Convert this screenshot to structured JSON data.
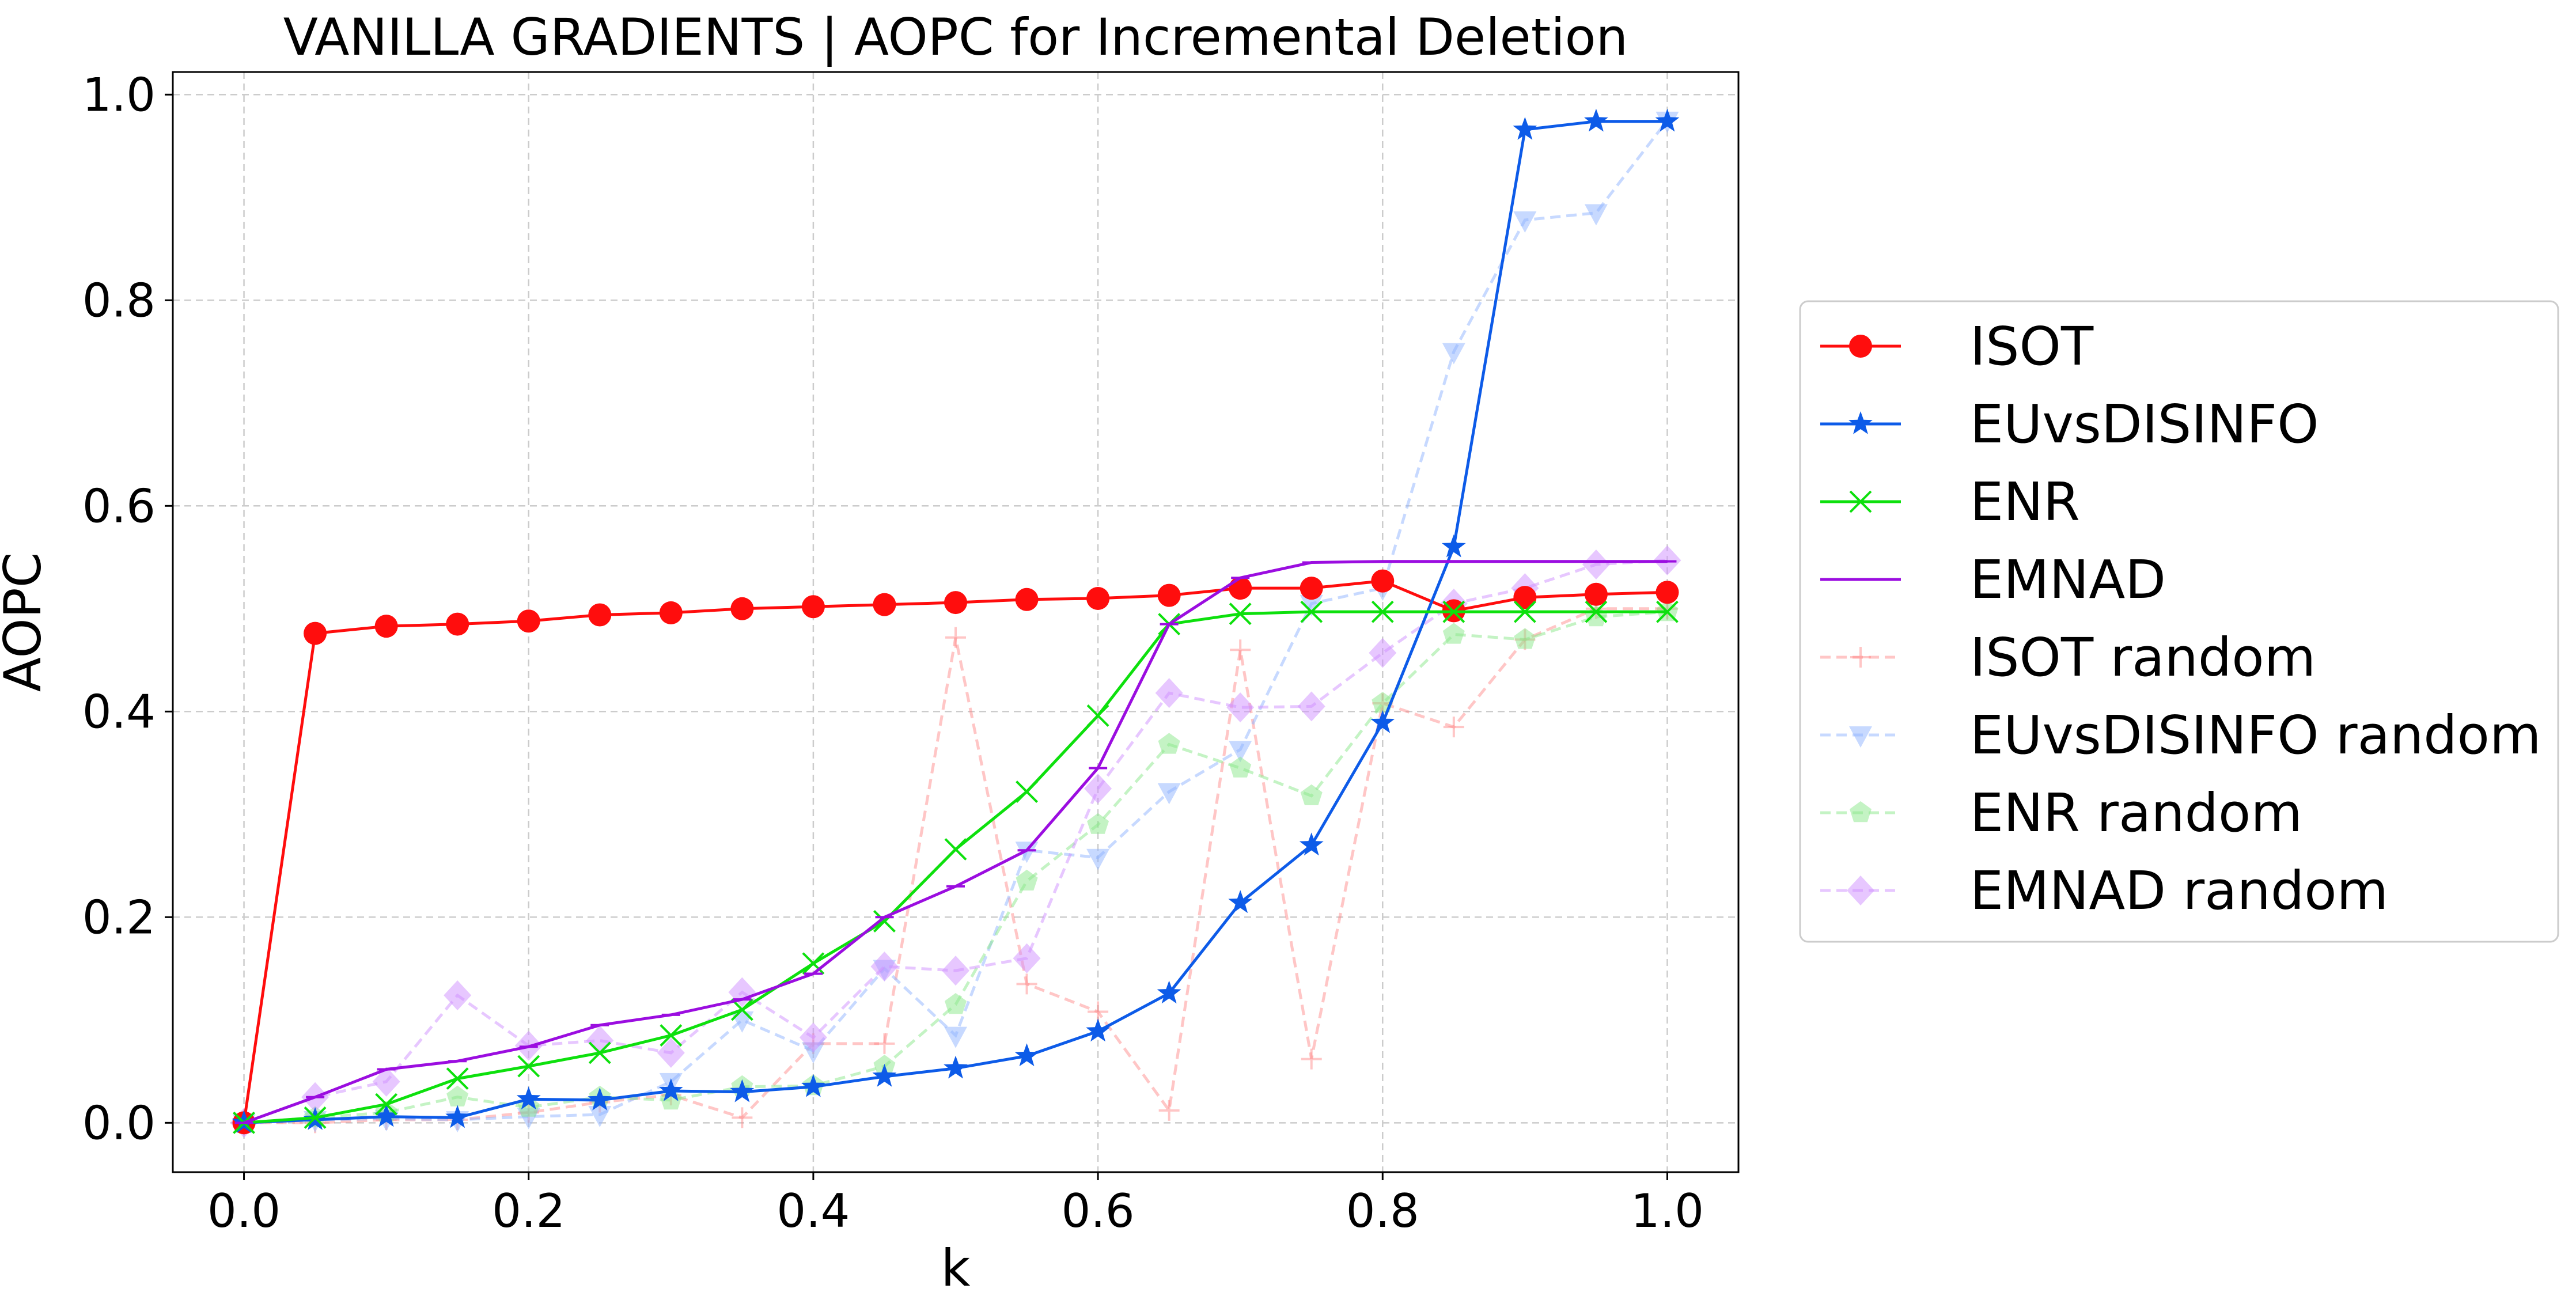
{
  "chart_data": {
    "type": "line",
    "title": "VANILLA GRADIENTS | AOPC for Incremental Deletion",
    "xlabel": "k",
    "ylabel": "AOPC",
    "xlim": [
      -0.05,
      1.05
    ],
    "ylim": [
      -0.048,
      1.022
    ],
    "xticks": [
      0.0,
      0.2,
      0.4,
      0.6,
      0.8,
      1.0
    ],
    "xtick_labels": [
      "0.0",
      "0.2",
      "0.4",
      "0.6",
      "0.8",
      "1.0"
    ],
    "yticks": [
      0.0,
      0.2,
      0.4,
      0.6,
      0.8,
      1.0
    ],
    "ytick_labels": [
      "0.0",
      "0.2",
      "0.4",
      "0.6",
      "0.8",
      "1.0"
    ],
    "grid": true,
    "legend_position": "outside-right",
    "x": [
      0.0,
      0.05,
      0.1,
      0.15,
      0.2,
      0.25,
      0.3,
      0.35,
      0.4,
      0.45,
      0.5,
      0.55,
      0.6,
      0.65,
      0.7,
      0.75,
      0.8,
      0.85,
      0.9,
      0.95,
      1.0
    ],
    "series": [
      {
        "name": "ISOT",
        "color": "#ff0d0d",
        "marker": "circle",
        "dashed": false,
        "alpha": 1,
        "values": [
          0.0,
          0.476,
          0.483,
          0.485,
          0.488,
          0.494,
          0.496,
          0.5,
          0.502,
          0.504,
          0.506,
          0.509,
          0.51,
          0.513,
          0.52,
          0.52,
          0.527,
          0.498,
          0.511,
          0.514,
          0.516
        ]
      },
      {
        "name": "EUvsDISINFO",
        "color": "#0d5be8",
        "marker": "star",
        "dashed": false,
        "alpha": 1,
        "values": [
          0.0,
          0.003,
          0.006,
          0.005,
          0.023,
          0.022,
          0.031,
          0.03,
          0.035,
          0.045,
          0.053,
          0.065,
          0.089,
          0.126,
          0.214,
          0.27,
          0.389,
          0.56,
          0.966,
          0.974,
          0.974
        ]
      },
      {
        "name": "ENR",
        "color": "#0de00d",
        "marker": "x",
        "dashed": false,
        "alpha": 1,
        "values": [
          0.0,
          0.005,
          0.018,
          0.043,
          0.055,
          0.068,
          0.085,
          0.11,
          0.155,
          0.196,
          0.266,
          0.322,
          0.396,
          0.485,
          0.495,
          0.497,
          0.497,
          0.497,
          0.497,
          0.497,
          0.497
        ]
      },
      {
        "name": "EMNAD",
        "color": "#9b0de0",
        "marker": "tick",
        "dashed": false,
        "alpha": 1,
        "values": [
          0.0,
          0.025,
          0.052,
          0.06,
          0.074,
          0.095,
          0.105,
          0.12,
          0.145,
          0.2,
          0.23,
          0.265,
          0.345,
          0.485,
          0.53,
          0.545,
          0.546,
          0.546,
          0.546,
          0.546,
          0.546
        ]
      },
      {
        "name": "ISOT random",
        "color": "#ff8080",
        "marker": "plus",
        "dashed": true,
        "alpha": 0.45,
        "values": [
          0.0,
          0.0,
          0.003,
          0.003,
          0.01,
          0.02,
          0.027,
          0.005,
          0.077,
          0.077,
          0.472,
          0.135,
          0.108,
          0.012,
          0.46,
          0.062,
          0.408,
          0.385,
          0.47,
          0.5,
          0.5
        ]
      },
      {
        "name": "EUvsDISINFO random",
        "color": "#8fb4ff",
        "marker": "triangle-down",
        "dashed": true,
        "alpha": 0.5,
        "values": [
          0.0,
          0.003,
          0.004,
          0.003,
          0.006,
          0.008,
          0.04,
          0.1,
          0.07,
          0.15,
          0.085,
          0.265,
          0.258,
          0.322,
          0.363,
          0.505,
          0.52,
          0.75,
          0.878,
          0.885,
          0.975
        ]
      },
      {
        "name": "ENR random",
        "color": "#8ae88a",
        "marker": "pentagon",
        "dashed": true,
        "alpha": 0.5,
        "values": [
          0.0,
          0.005,
          0.01,
          0.025,
          0.015,
          0.025,
          0.022,
          0.035,
          0.036,
          0.055,
          0.115,
          0.235,
          0.29,
          0.368,
          0.345,
          0.318,
          0.408,
          0.475,
          0.47,
          0.492,
          0.497
        ]
      },
      {
        "name": "EMNAD random",
        "color": "#cf8fff",
        "marker": "diamond",
        "dashed": true,
        "alpha": 0.5,
        "values": [
          0.0,
          0.025,
          0.04,
          0.124,
          0.075,
          0.08,
          0.068,
          0.127,
          0.083,
          0.152,
          0.148,
          0.16,
          0.325,
          0.418,
          0.404,
          0.405,
          0.457,
          0.505,
          0.52,
          0.543,
          0.547
        ]
      }
    ]
  }
}
